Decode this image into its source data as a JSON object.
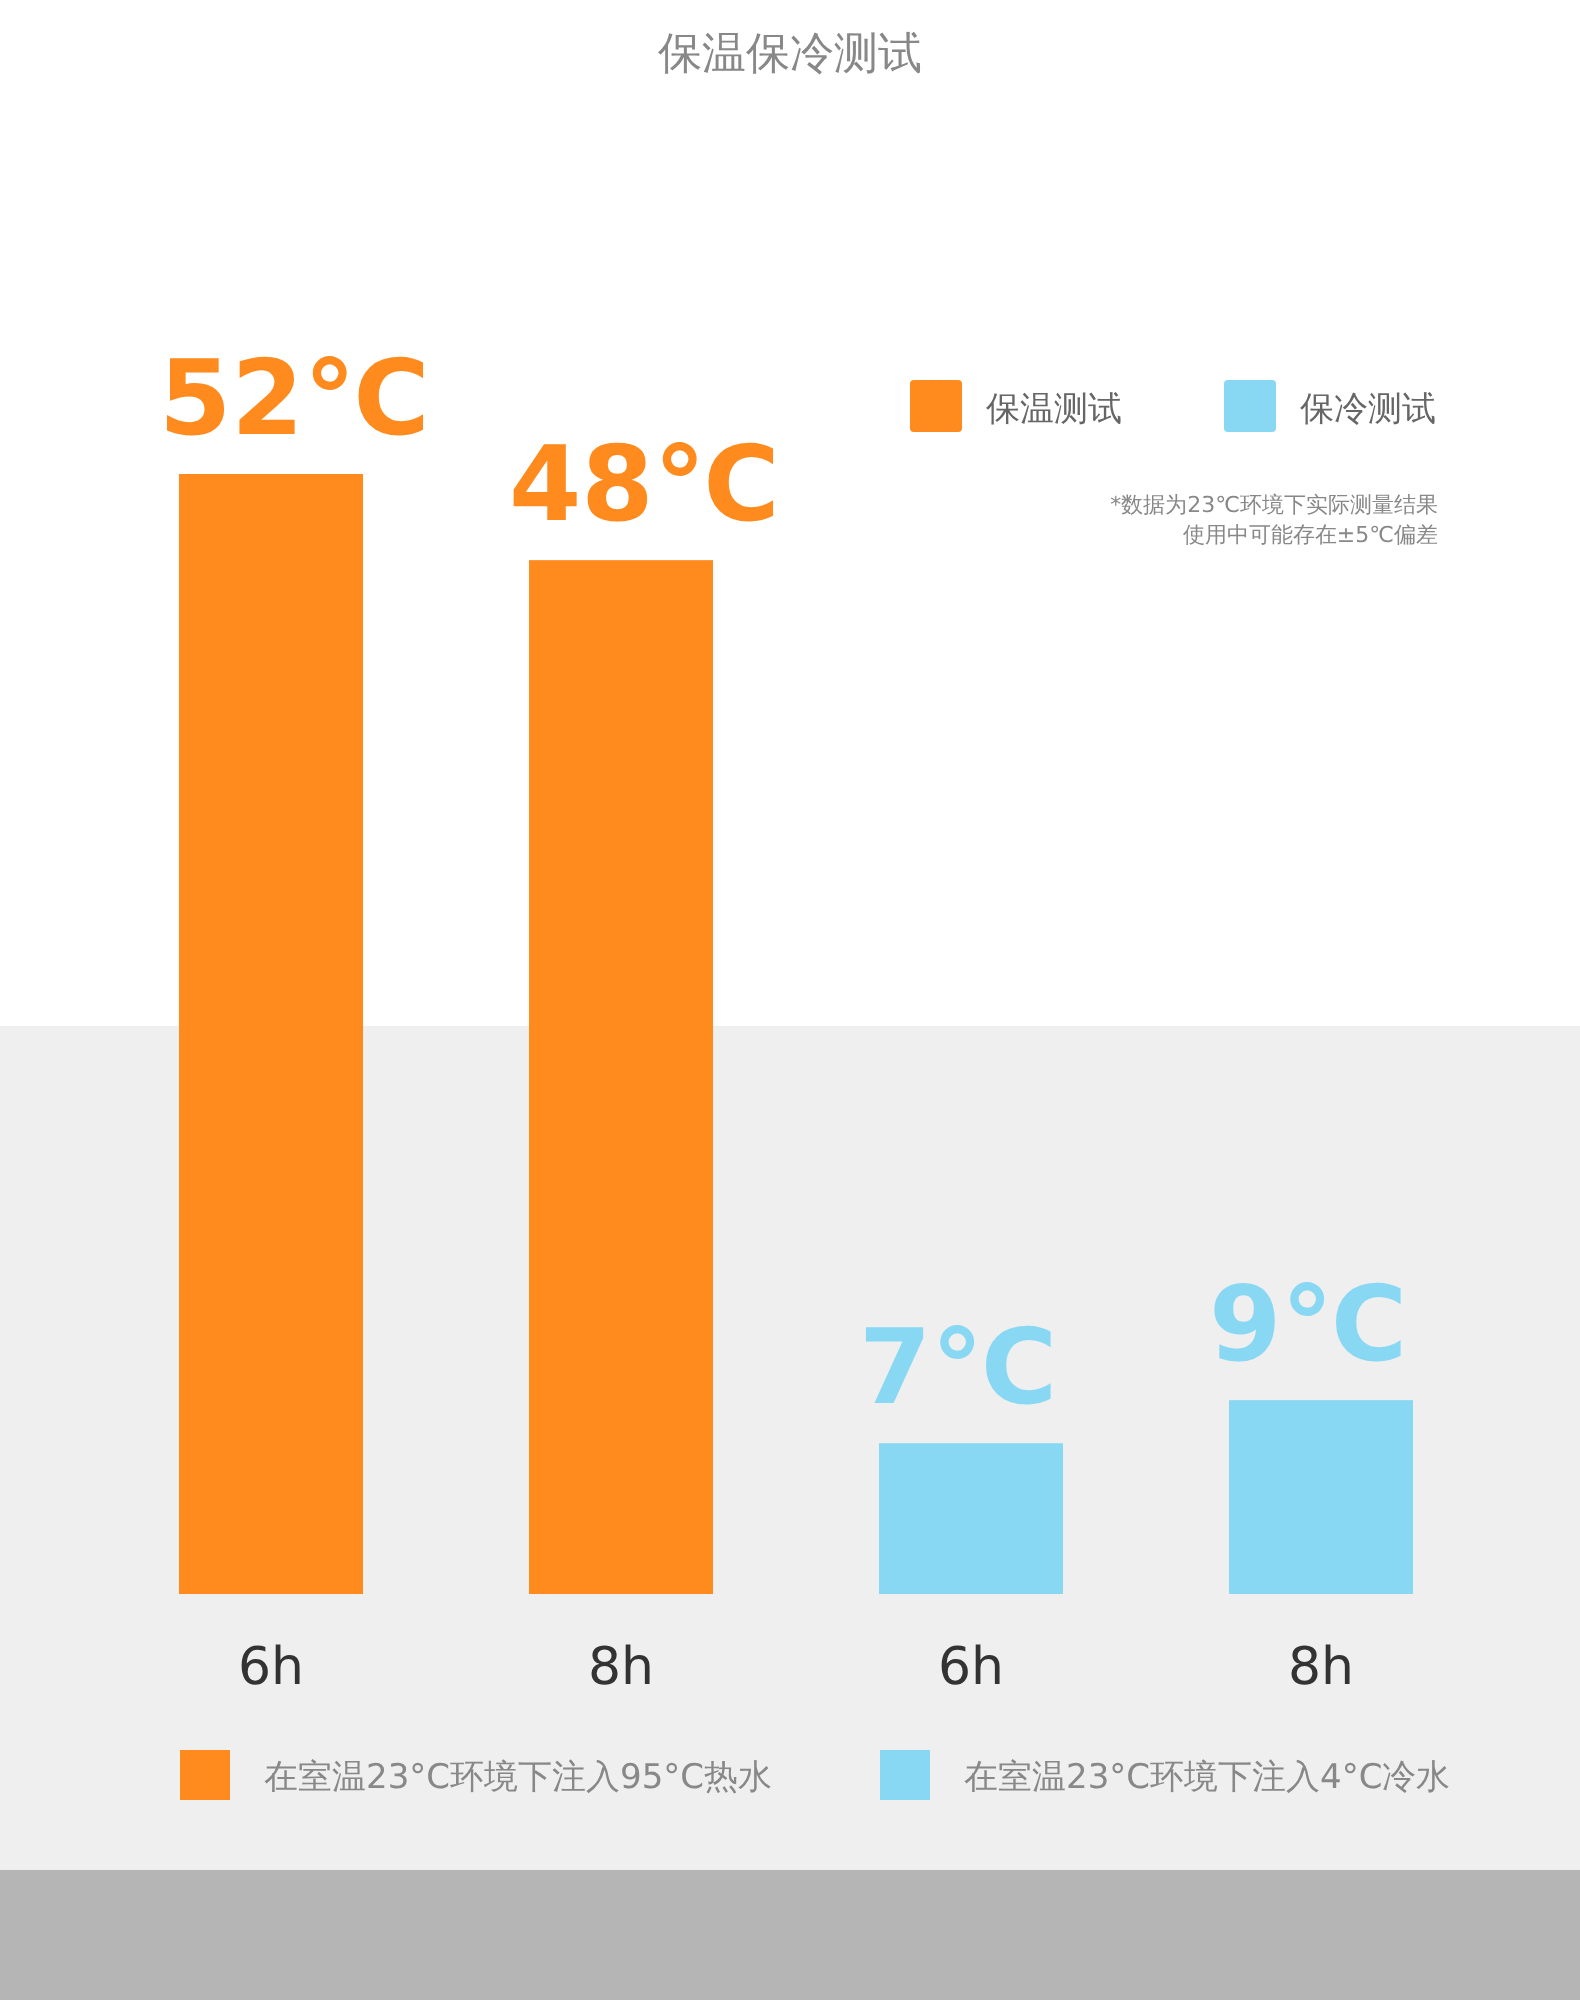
{
  "chart_data": {
    "type": "bar",
    "title": "保温保冷测试",
    "categories": [
      "6h",
      "8h",
      "6h",
      "8h"
    ],
    "series": [
      {
        "name": "保温测试",
        "color": "#ff8a1e",
        "values": [
          52,
          48,
          null,
          null
        ],
        "value_labels": [
          "52℃",
          "48℃",
          null,
          null
        ]
      },
      {
        "name": "保冷测试",
        "color": "#88d8f3",
        "values": [
          null,
          null,
          7,
          9
        ],
        "value_labels": [
          null,
          null,
          "7℃",
          "9℃"
        ]
      }
    ],
    "legend": "top right",
    "annotations": [
      "*数据为23℃环境下实际测量结果",
      "使用中可能存在±5℃偏差",
      "在室温23°C环境下注入95°C热水",
      "在室温23°C环境下注入4°C冷水"
    ]
  }
}
